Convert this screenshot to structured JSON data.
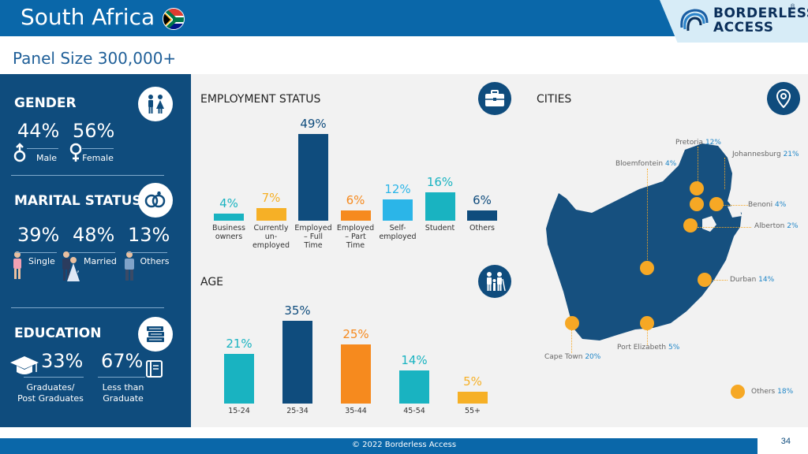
{
  "header": {
    "title": "South Africa",
    "logo_line1": "BORDERLESS",
    "logo_line2": "ACCESS",
    "logo_reg": "®",
    "flag_icon": "south-africa-flag-icon"
  },
  "panel_size": "Panel Size 300,000+",
  "gender": {
    "title": "GENDER",
    "icon": "people-icon",
    "male_pct": "44%",
    "female_pct": "56%",
    "male_label": "Male",
    "female_label": "Female"
  },
  "marital": {
    "title": "MARITAL STATUS",
    "icon": "rings-icon",
    "single_pct": "39%",
    "married_pct": "48%",
    "others_pct": "13%",
    "single_label": "Single",
    "married_label": "Married",
    "married_comma": ",",
    "others_label": "Others"
  },
  "education": {
    "title": "EDUCATION",
    "icon": "books-icon",
    "grad_pct": "33%",
    "less_pct": "67%",
    "grad_label_1": "Graduates/",
    "grad_label_2": "Post Graduates",
    "less_label_1": "Less than",
    "less_label_2": "Graduate"
  },
  "employment": {
    "title": "EMPLOYMENT STATUS",
    "icon": "briefcase-icon"
  },
  "age": {
    "title": "AGE",
    "icon": "family-icon"
  },
  "cities": {
    "title": "CITIES",
    "icon": "location-pin-icon",
    "items": [
      {
        "name": "Pretoria",
        "pct": "12%"
      },
      {
        "name": "Johannesburg",
        "pct": "21%"
      },
      {
        "name": "Bloemfontein",
        "pct": "4%"
      },
      {
        "name": "Benoni",
        "pct": "4%"
      },
      {
        "name": "Alberton",
        "pct": "2%"
      },
      {
        "name": "Durban",
        "pct": "14%"
      },
      {
        "name": "Port Elizabeth",
        "pct": "5%"
      },
      {
        "name": "Cape Town",
        "pct": "20%"
      },
      {
        "name": "Others",
        "pct": "18%"
      }
    ]
  },
  "chart_data": [
    {
      "type": "bar",
      "title": "EMPLOYMENT STATUS",
      "categories": [
        "Business owners",
        "Currently un-employed",
        "Employed – Full Time",
        "Employed – Part Time",
        "Self-employed",
        "Student",
        "Others"
      ],
      "category_lines": [
        [
          "Business",
          "owners"
        ],
        [
          "Currently",
          "un-",
          "employed"
        ],
        [
          "Employed",
          "– Full",
          "Time"
        ],
        [
          "Employed",
          "– Part",
          "Time"
        ],
        [
          "Self-",
          "employed"
        ],
        [
          "Student"
        ],
        [
          "Others"
        ]
      ],
      "values": [
        4,
        7,
        49,
        6,
        12,
        16,
        6
      ],
      "labels": [
        "4%",
        "7%",
        "49%",
        "6%",
        "12%",
        "16%",
        "6%"
      ],
      "colors": [
        "#19b3c1",
        "#f6b026",
        "#0f4c7d",
        "#f68a1e",
        "#2bb5e8",
        "#19b3c1",
        "#0f4c7d"
      ]
    },
    {
      "type": "bar",
      "title": "AGE",
      "categories": [
        "15-24",
        "25-34",
        "35-44",
        "45-54",
        "55+"
      ],
      "values": [
        21,
        35,
        25,
        14,
        5
      ],
      "labels": [
        "21%",
        "35%",
        "25%",
        "14%",
        "5%"
      ],
      "colors": [
        "#19b3c1",
        "#0f4c7d",
        "#f68a1e",
        "#19b3c1",
        "#f6b026"
      ]
    }
  ],
  "footer": {
    "copyright": "© 2022 Borderless Access",
    "page": "34"
  }
}
